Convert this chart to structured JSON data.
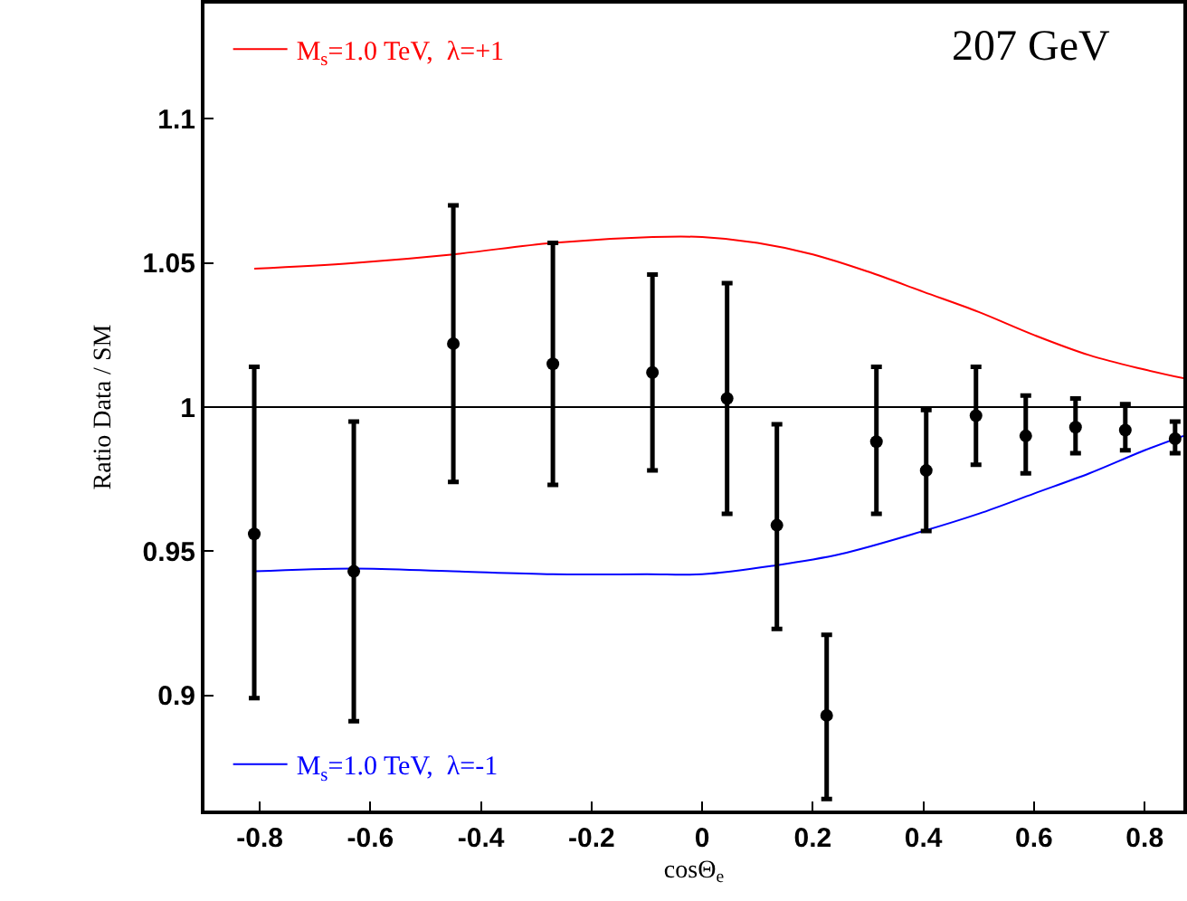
{
  "chart_data": {
    "type": "scatter",
    "title": "207 GeV",
    "xlabel": "cosΘ$_{e}$",
    "ylabel": "Ratio Data / SM",
    "xlim": [
      -0.9,
      0.87
    ],
    "ylim": [
      0.86,
      1.14
    ],
    "xticks": [
      -0.8,
      -0.6,
      -0.4,
      -0.2,
      0,
      0.2,
      0.4,
      0.6,
      0.8
    ],
    "yticks": [
      0.9,
      0.95,
      1,
      1.05,
      1.1
    ],
    "legend": "left",
    "marker": "circle",
    "ref_lines": [
      {
        "axis": "y",
        "value": 1,
        "color": "#000000"
      }
    ],
    "series": [
      {
        "type": "line",
        "marker": "none",
        "name": "M$_{s}$=1.0 TeV,  λ=+1",
        "color": "#ff0000",
        "x": [
          -0.81,
          -0.63,
          -0.45,
          -0.27,
          -0.09,
          0,
          0.1,
          0.2,
          0.3,
          0.4,
          0.5,
          0.6,
          0.7,
          0.8,
          0.87
        ],
        "values": [
          1.048,
          1.05,
          1.053,
          1.057,
          1.059,
          1.059,
          1.057,
          1.053,
          1.047,
          1.04,
          1.033,
          1.025,
          1.018,
          1.013,
          1.01
        ]
      },
      {
        "type": "line",
        "marker": "none",
        "name": "M$_{s}$=1.0 TeV,  λ=-1",
        "color": "#0000ff",
        "x": [
          -0.81,
          -0.63,
          -0.45,
          -0.27,
          -0.1,
          0,
          0.13,
          0.25,
          0.4,
          0.5,
          0.6,
          0.7,
          0.8,
          0.87
        ],
        "values": [
          0.943,
          0.944,
          0.943,
          0.942,
          0.942,
          0.942,
          0.945,
          0.949,
          0.957,
          0.963,
          0.97,
          0.977,
          0.985,
          0.99
        ]
      },
      {
        "color": "#000000",
        "x": [
          -0.81,
          -0.63,
          -0.45,
          -0.27,
          -0.09,
          0.045,
          0.135,
          0.225,
          0.315,
          0.405,
          0.495,
          0.585,
          0.675,
          0.765,
          0.855
        ],
        "values": [
          0.956,
          0.943,
          1.022,
          1.015,
          1.012,
          1.003,
          0.959,
          0.893,
          0.988,
          0.978,
          0.997,
          0.99,
          0.993,
          0.992,
          0.989
        ],
        "errors": [
          [
            0.899,
            1.014
          ],
          [
            0.891,
            0.995
          ],
          [
            0.974,
            1.07
          ],
          [
            0.973,
            1.057
          ],
          [
            0.978,
            1.046
          ],
          [
            0.963,
            1.043
          ],
          [
            0.923,
            0.994
          ],
          [
            0.864,
            0.921
          ],
          [
            0.963,
            1.014
          ],
          [
            0.957,
            0.999
          ],
          [
            0.98,
            1.014
          ],
          [
            0.977,
            1.004
          ],
          [
            0.984,
            1.003
          ],
          [
            0.985,
            1.001
          ],
          [
            0.984,
            0.995
          ]
        ]
      }
    ]
  }
}
